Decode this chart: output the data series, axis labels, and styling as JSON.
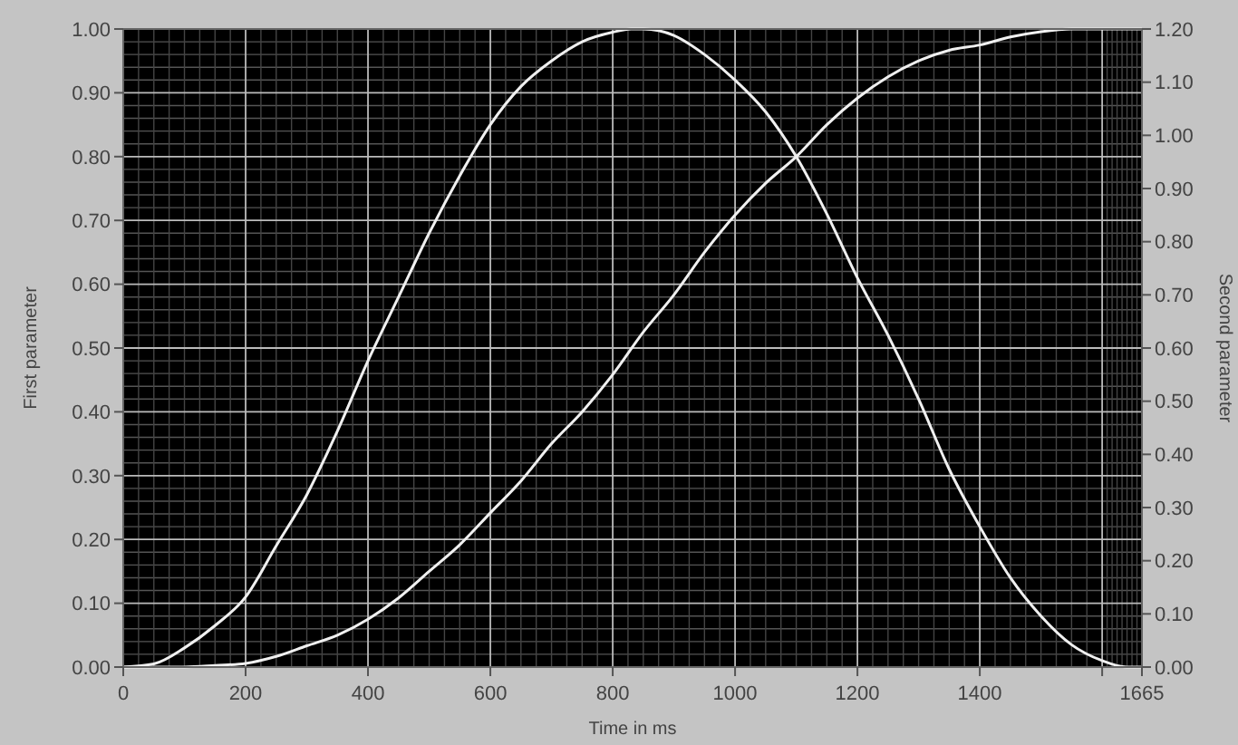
{
  "chart_data": {
    "type": "line",
    "xlabel": "Time in ms",
    "ylabel": "First parameter",
    "y2label": "Second parameter",
    "grid": true,
    "marker": "none",
    "line_style": "solid",
    "xlim": [
      0,
      1665
    ],
    "xticks": [
      0,
      200,
      400,
      600,
      800,
      1000,
      1200,
      1400,
      {
        "value": 1600,
        "label": null
      },
      1665
    ],
    "ylim": [
      0,
      1
    ],
    "yticks": [
      {
        "value": 0,
        "label": "0.00"
      },
      {
        "value": 0.1,
        "label": "0.10"
      },
      {
        "value": 0.2,
        "label": "0.20"
      },
      {
        "value": 0.3,
        "label": "0.30"
      },
      {
        "value": 0.4,
        "label": "0.40"
      },
      {
        "value": 0.5,
        "label": "0.50"
      },
      {
        "value": 0.6,
        "label": "0.60"
      },
      {
        "value": 0.7,
        "label": "0.70"
      },
      {
        "value": 0.8,
        "label": "0.80"
      },
      {
        "value": 0.9,
        "label": "0.90"
      },
      {
        "value": 1,
        "label": "1.00"
      }
    ],
    "y2lim": [
      0,
      1.2
    ],
    "y2ticks": [
      {
        "value": 0,
        "label": "0.00"
      },
      {
        "value": 0.1,
        "label": "0.10"
      },
      {
        "value": 0.2,
        "label": "0.20"
      },
      {
        "value": 0.3,
        "label": "0.30"
      },
      {
        "value": 0.4,
        "label": "0.40"
      },
      {
        "value": 0.5,
        "label": "0.50"
      },
      {
        "value": 0.6,
        "label": "0.60"
      },
      {
        "value": 0.7,
        "label": "0.70"
      },
      {
        "value": 0.8,
        "label": "0.80"
      },
      {
        "value": 0.9,
        "label": "0.90"
      },
      {
        "value": 1,
        "label": "1.00"
      },
      {
        "value": 1.1,
        "label": "1.10"
      },
      {
        "value": 1.2,
        "label": "1.20"
      }
    ],
    "series": [
      {
        "color": "#f0f0f0",
        "x": [
          0,
          50,
          100,
          150,
          200,
          250,
          300,
          350,
          400,
          450,
          500,
          550,
          600,
          650,
          700,
          750,
          800,
          830,
          850,
          900,
          950,
          1000,
          1050,
          1100,
          1150,
          1200,
          1250,
          1300,
          1350,
          1400,
          1450,
          1500,
          1550,
          1600,
          1640,
          1665
        ],
        "values": [
          0,
          0.005,
          0.03,
          0.065,
          0.11,
          0.19,
          0.27,
          0.37,
          0.48,
          0.58,
          0.68,
          0.77,
          0.85,
          0.91,
          0.95,
          0.98,
          0.995,
          1,
          1,
          0.99,
          0.96,
          0.92,
          0.87,
          0.8,
          0.71,
          0.61,
          0.52,
          0.42,
          0.31,
          0.22,
          0.14,
          0.08,
          0.035,
          0.01,
          0,
          0
        ]
      },
      {
        "color": "#f0f0f0",
        "axis": "y2",
        "x": [
          0,
          100,
          150,
          200,
          250,
          300,
          350,
          400,
          450,
          500,
          550,
          600,
          650,
          700,
          750,
          800,
          850,
          900,
          950,
          1000,
          1050,
          1100,
          1150,
          1200,
          1250,
          1300,
          1350,
          1400,
          1450,
          1500,
          1550,
          1665
        ],
        "values": [
          0,
          0,
          0.003,
          0.007,
          0.02,
          0.04,
          0.06,
          0.09,
          0.13,
          0.18,
          0.23,
          0.29,
          0.35,
          0.42,
          0.48,
          0.55,
          0.63,
          0.7,
          0.78,
          0.85,
          0.91,
          0.96,
          1.02,
          1.07,
          1.11,
          1.14,
          1.16,
          1.17,
          1.185,
          1.195,
          1.2,
          1.2
        ]
      }
    ]
  }
}
